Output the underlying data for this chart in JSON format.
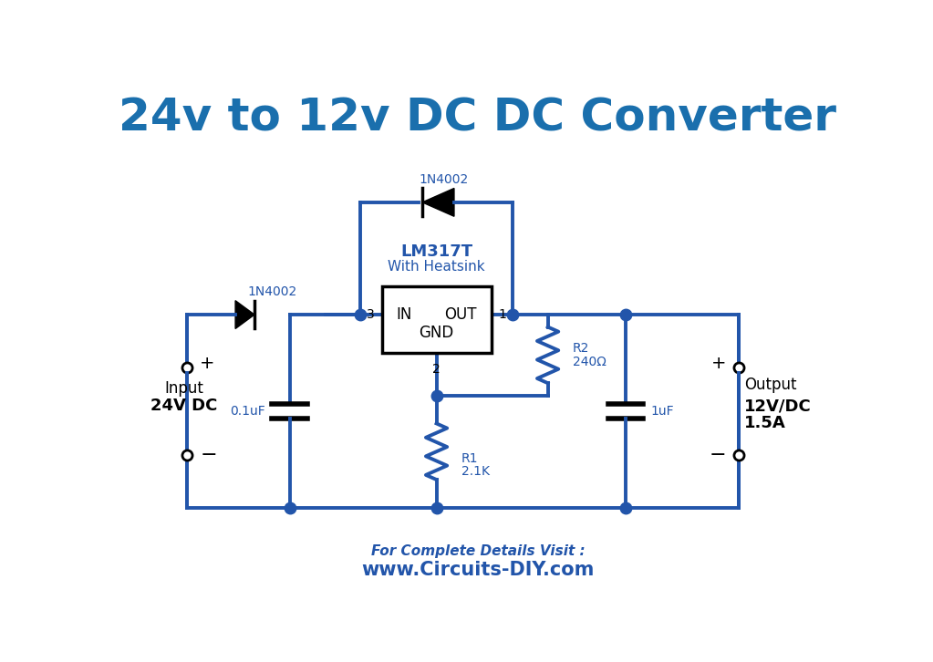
{
  "title": "24v to 12v DC DC Converter",
  "title_color": "#1a6fad",
  "title_fontsize": 36,
  "bg_color": "#ffffff",
  "circuit_color": "#2255aa",
  "line_width": 2.8,
  "dot_size": 9,
  "footer_line1": "For Complete Details Visit :",
  "footer_line2": "www.Circuits-DIY.com",
  "footer_color": "#2255aa",
  "component_color": "#000000",
  "label_color": "#2255aa"
}
